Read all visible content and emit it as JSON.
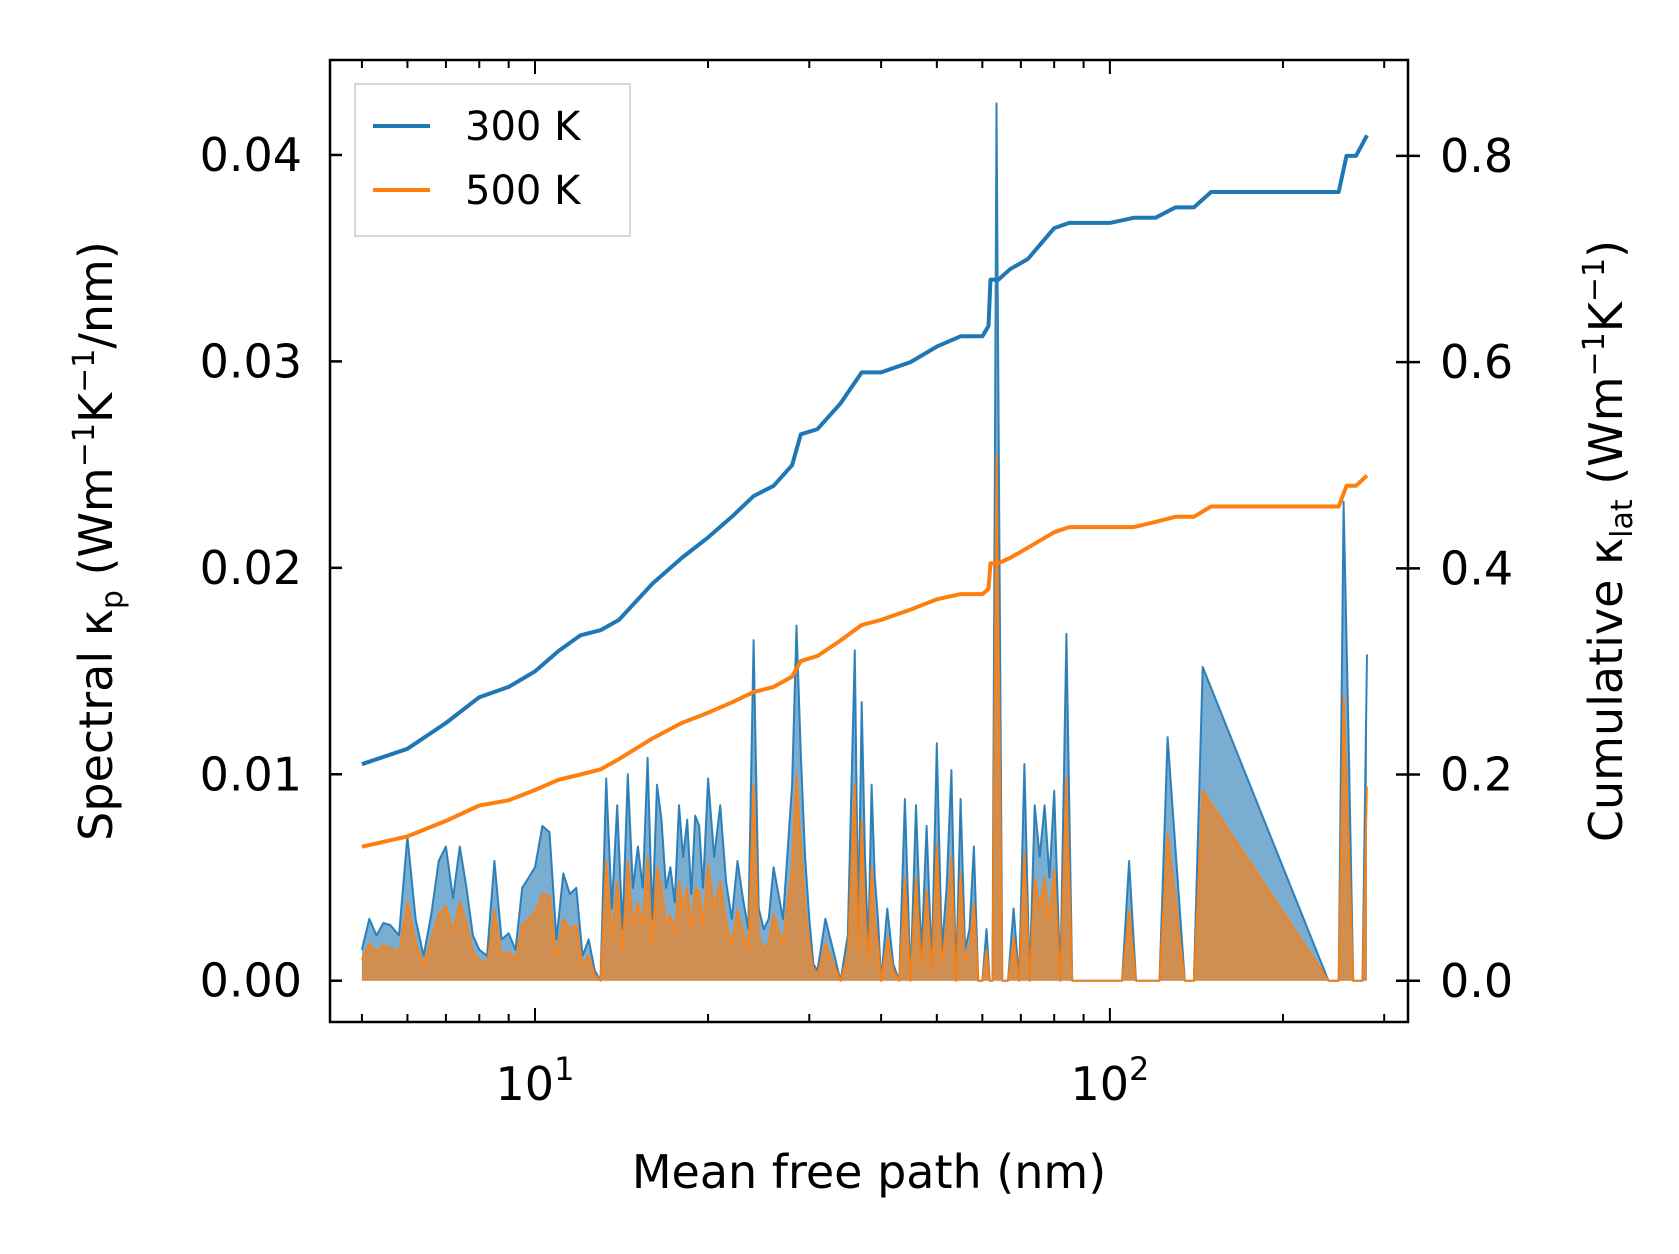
{
  "chart_data": {
    "type": "line",
    "title": "",
    "xlabel": "Mean free path (nm)",
    "xscale": "log",
    "xlim": [
      4.4,
      330
    ],
    "x_tick_labels": [
      {
        "value": 10,
        "base": "10",
        "exp": "1"
      },
      {
        "value": 100,
        "base": "10",
        "exp": "2"
      }
    ],
    "ylabel_left": {
      "prefix": "Spectral κ",
      "sub": "p",
      "unit_open": " (Wm",
      "exp1": "−1",
      "mid": "K",
      "exp2": "−1",
      "unit_close": "/nm)"
    },
    "ylim_left": [
      -0.002,
      0.0446
    ],
    "y_ticks_left": [
      0.0,
      0.01,
      0.02,
      0.03,
      0.04
    ],
    "y_tick_labels_left": [
      "0.00",
      "0.01",
      "0.02",
      "0.03",
      "0.04"
    ],
    "ylabel_right": {
      "prefix": "Cumulative κ",
      "sub": "lat",
      "unit_open": " (Wm",
      "exp1": "−1",
      "mid": "K",
      "exp2": "−1",
      "unit_close": ")"
    },
    "ylim_right": [
      -0.04,
      0.893
    ],
    "y_ticks_right": [
      0.0,
      0.2,
      0.4,
      0.6,
      0.8
    ],
    "y_tick_labels_right": [
      "0.0",
      "0.2",
      "0.4",
      "0.6",
      "0.8"
    ],
    "legend": {
      "location": "upper-left",
      "entries": [
        "300 K",
        "500 K"
      ]
    },
    "colors": {
      "300 K": "#1f77b4",
      "500 K": "#ff7f0e"
    },
    "cumulative": [
      {
        "name": "300 K",
        "axis": "right",
        "x": [
          5,
          6,
          7,
          8,
          9,
          10,
          11,
          12,
          13,
          14,
          16,
          18,
          20,
          22,
          24,
          26,
          28,
          29,
          31,
          34,
          37,
          40,
          45,
          50,
          55,
          60,
          61.5,
          62,
          64,
          67,
          72,
          80,
          85,
          100,
          110,
          120,
          130,
          140,
          150,
          200,
          250,
          258,
          268,
          280
        ],
        "y": [
          0.21,
          0.225,
          0.25,
          0.275,
          0.285,
          0.3,
          0.32,
          0.335,
          0.34,
          0.35,
          0.385,
          0.41,
          0.43,
          0.45,
          0.47,
          0.48,
          0.5,
          0.53,
          0.535,
          0.56,
          0.59,
          0.59,
          0.6,
          0.615,
          0.625,
          0.625,
          0.635,
          0.68,
          0.68,
          0.69,
          0.7,
          0.73,
          0.735,
          0.735,
          0.74,
          0.74,
          0.75,
          0.75,
          0.765,
          0.765,
          0.765,
          0.8,
          0.8,
          0.82
        ]
      },
      {
        "name": "500 K",
        "axis": "right",
        "x": [
          5,
          6,
          7,
          8,
          9,
          10,
          11,
          12,
          13,
          14,
          16,
          18,
          20,
          22,
          24,
          26,
          28,
          29,
          31,
          34,
          37,
          40,
          45,
          50,
          55,
          60,
          61.5,
          62,
          64,
          67,
          72,
          80,
          85,
          100,
          110,
          120,
          130,
          140,
          150,
          200,
          250,
          258,
          268,
          280
        ],
        "y": [
          0.13,
          0.14,
          0.155,
          0.17,
          0.175,
          0.185,
          0.195,
          0.2,
          0.205,
          0.215,
          0.235,
          0.25,
          0.26,
          0.27,
          0.28,
          0.285,
          0.295,
          0.31,
          0.315,
          0.33,
          0.345,
          0.35,
          0.36,
          0.37,
          0.375,
          0.375,
          0.38,
          0.405,
          0.405,
          0.41,
          0.42,
          0.435,
          0.44,
          0.44,
          0.44,
          0.445,
          0.45,
          0.45,
          0.46,
          0.46,
          0.46,
          0.48,
          0.48,
          0.49
        ]
      }
    ],
    "spectral": [
      {
        "name": "300 K",
        "axis": "left",
        "x": [
          5.0,
          5.15,
          5.3,
          5.45,
          5.6,
          5.8,
          6.0,
          6.2,
          6.4,
          6.6,
          6.8,
          7.0,
          7.2,
          7.4,
          7.6,
          7.8,
          8.0,
          8.25,
          8.5,
          8.75,
          9.0,
          9.25,
          9.5,
          9.75,
          10.0,
          10.3,
          10.6,
          10.9,
          11.2,
          11.5,
          11.8,
          12.1,
          12.4,
          12.7,
          13.0,
          13.3,
          13.6,
          13.9,
          14.2,
          14.5,
          14.8,
          15.1,
          15.4,
          15.7,
          16.0,
          16.3,
          16.6,
          16.9,
          17.2,
          17.5,
          17.8,
          18.1,
          18.4,
          18.7,
          19.0,
          19.3,
          19.6,
          20.0,
          20.5,
          21.0,
          21.5,
          22.0,
          22.5,
          23.0,
          23.5,
          24.0,
          24.5,
          25.0,
          25.5,
          26.0,
          27.0,
          28.0,
          28.5,
          29.0,
          29.5,
          30.0,
          30.5,
          31.0,
          32.0,
          33.0,
          34.0,
          35.0,
          36.0,
          36.5,
          37.0,
          37.5,
          38.0,
          38.5,
          39.0,
          39.5,
          40.0,
          41.0,
          42.0,
          43.0,
          44.0,
          45.0,
          46.0,
          47.0,
          48.0,
          49.0,
          50.0,
          51.0,
          52.0,
          53.0,
          54.0,
          55.0,
          56.0,
          57.0,
          58.0,
          59.0,
          60.0,
          61.0,
          61.8,
          62.5,
          63.5,
          65.0,
          66.5,
          68.0,
          69.5,
          71.0,
          72.5,
          74.0,
          75.5,
          77.0,
          78.5,
          80.0,
          82.0,
          84.0,
          86.0,
          88.0,
          100.0,
          105.0,
          108.0,
          111.0,
          118.0,
          122.0,
          126.0,
          135.0,
          140.0,
          145.0,
          240.0,
          245.0,
          250.0,
          255.0,
          260.0,
          265.0,
          270.0,
          275.0,
          280.0
        ],
        "y": [
          0.0015,
          0.003,
          0.0022,
          0.0028,
          0.0027,
          0.0022,
          0.007,
          0.003,
          0.0012,
          0.0032,
          0.0058,
          0.0065,
          0.004,
          0.0065,
          0.0045,
          0.0022,
          0.0015,
          0.0012,
          0.0058,
          0.002,
          0.0023,
          0.0015,
          0.0045,
          0.005,
          0.0055,
          0.0075,
          0.0072,
          0.002,
          0.0052,
          0.0042,
          0.0045,
          0.0012,
          0.002,
          0.0005,
          0.0,
          0.0098,
          0.0035,
          0.0085,
          0.0025,
          0.01,
          0.0045,
          0.0065,
          0.0045,
          0.0108,
          0.003,
          0.0095,
          0.0078,
          0.0045,
          0.0055,
          0.0038,
          0.0085,
          0.006,
          0.0078,
          0.0042,
          0.008,
          0.0075,
          0.0045,
          0.0098,
          0.006,
          0.0085,
          0.0048,
          0.003,
          0.0058,
          0.004,
          0.0025,
          0.0165,
          0.0035,
          0.0025,
          0.003,
          0.0055,
          0.003,
          0.0095,
          0.0172,
          0.011,
          0.006,
          0.003,
          0.0008,
          0.0005,
          0.003,
          0.0015,
          0.0,
          0.0022,
          0.016,
          0.0025,
          0.0135,
          0.006,
          0.0015,
          0.0095,
          0.005,
          0.003,
          0.0,
          0.0035,
          0.0008,
          0.0,
          0.0088,
          0.0,
          0.0085,
          0.0012,
          0.0075,
          0.0008,
          0.0115,
          0.0015,
          0.0045,
          0.0102,
          0.0,
          0.0088,
          0.0015,
          0.0025,
          0.0065,
          0.0,
          0.0,
          0.0025,
          0.0,
          0.0,
          0.0425,
          0.0,
          0.0,
          0.0035,
          0.0,
          0.0105,
          0.0,
          0.0085,
          0.006,
          0.0085,
          0.005,
          0.0092,
          0.0,
          0.0168,
          0.0,
          0.0,
          0.0,
          0.0,
          0.0058,
          0.0,
          0.0,
          0.0,
          0.0118,
          0.0,
          0.0,
          0.0152,
          0.0,
          0.0,
          0.0,
          0.0232,
          0.012,
          0.0,
          0.0,
          0.0,
          0.0158
        ]
      },
      {
        "name": "500 K",
        "axis": "left",
        "x": [
          5.0,
          5.15,
          5.3,
          5.45,
          5.6,
          5.8,
          6.0,
          6.2,
          6.4,
          6.6,
          6.8,
          7.0,
          7.2,
          7.4,
          7.6,
          7.8,
          8.0,
          8.25,
          8.5,
          8.75,
          9.0,
          9.25,
          9.5,
          9.75,
          10.0,
          10.3,
          10.6,
          10.9,
          11.2,
          11.5,
          11.8,
          12.1,
          12.4,
          12.7,
          13.0,
          13.3,
          13.6,
          13.9,
          14.2,
          14.5,
          14.8,
          15.1,
          15.4,
          15.7,
          16.0,
          16.3,
          16.6,
          16.9,
          17.2,
          17.5,
          17.8,
          18.1,
          18.4,
          18.7,
          19.0,
          19.3,
          19.6,
          20.0,
          20.5,
          21.0,
          21.5,
          22.0,
          22.5,
          23.0,
          23.5,
          24.0,
          24.5,
          25.0,
          25.5,
          26.0,
          27.0,
          28.0,
          28.5,
          29.0,
          29.5,
          30.0,
          30.5,
          31.0,
          32.0,
          33.0,
          34.0,
          35.0,
          36.0,
          36.5,
          37.0,
          37.5,
          38.0,
          38.5,
          39.0,
          39.5,
          40.0,
          41.0,
          42.0,
          43.0,
          44.0,
          45.0,
          46.0,
          47.0,
          48.0,
          49.0,
          50.0,
          51.0,
          52.0,
          53.0,
          54.0,
          55.0,
          56.0,
          57.0,
          58.0,
          59.0,
          60.0,
          61.0,
          61.8,
          62.5,
          63.5,
          65.0,
          66.5,
          68.0,
          69.5,
          71.0,
          72.5,
          74.0,
          75.5,
          77.0,
          78.5,
          80.0,
          82.0,
          84.0,
          86.0,
          88.0,
          100.0,
          105.0,
          108.0,
          111.0,
          118.0,
          122.0,
          126.0,
          135.0,
          140.0,
          145.0,
          240.0,
          245.0,
          250.0,
          255.0,
          260.0,
          265.0,
          270.0,
          275.0,
          280.0
        ],
        "y": [
          0.001,
          0.0018,
          0.0014,
          0.0017,
          0.0016,
          0.0013,
          0.0038,
          0.0018,
          0.0008,
          0.002,
          0.0032,
          0.0036,
          0.0024,
          0.0038,
          0.0028,
          0.0014,
          0.001,
          0.0008,
          0.0034,
          0.0012,
          0.0014,
          0.001,
          0.0027,
          0.003,
          0.0033,
          0.0042,
          0.0041,
          0.0012,
          0.003,
          0.0025,
          0.0027,
          0.0008,
          0.0012,
          0.0003,
          0.0,
          0.0058,
          0.0021,
          0.0048,
          0.0015,
          0.0058,
          0.0027,
          0.0038,
          0.0027,
          0.006,
          0.0018,
          0.0055,
          0.0045,
          0.0027,
          0.0032,
          0.0023,
          0.0048,
          0.0035,
          0.0045,
          0.0025,
          0.0045,
          0.0043,
          0.0027,
          0.0056,
          0.0035,
          0.0048,
          0.0028,
          0.0018,
          0.0034,
          0.0024,
          0.0015,
          0.0095,
          0.0021,
          0.0015,
          0.0018,
          0.0032,
          0.0018,
          0.0055,
          0.01,
          0.0064,
          0.0035,
          0.0018,
          0.0005,
          0.0003,
          0.0018,
          0.0009,
          0.0,
          0.0013,
          0.0095,
          0.0015,
          0.0078,
          0.0035,
          0.0009,
          0.0055,
          0.003,
          0.0018,
          0.0,
          0.0021,
          0.0005,
          0.0,
          0.005,
          0.0,
          0.005,
          0.0007,
          0.0044,
          0.0005,
          0.0066,
          0.0009,
          0.0027,
          0.006,
          0.0,
          0.0052,
          0.0009,
          0.0015,
          0.0038,
          0.0,
          0.0,
          0.0015,
          0.0,
          0.0,
          0.0255,
          0.0,
          0.0,
          0.0021,
          0.0,
          0.0062,
          0.0,
          0.005,
          0.0035,
          0.005,
          0.003,
          0.0054,
          0.0,
          0.0098,
          0.0,
          0.0,
          0.0,
          0.0,
          0.0034,
          0.0,
          0.0,
          0.0,
          0.0071,
          0.0,
          0.0,
          0.0092,
          0.0,
          0.0,
          0.0,
          0.0138,
          0.007,
          0.0,
          0.0,
          0.0,
          0.0094
        ]
      }
    ]
  }
}
